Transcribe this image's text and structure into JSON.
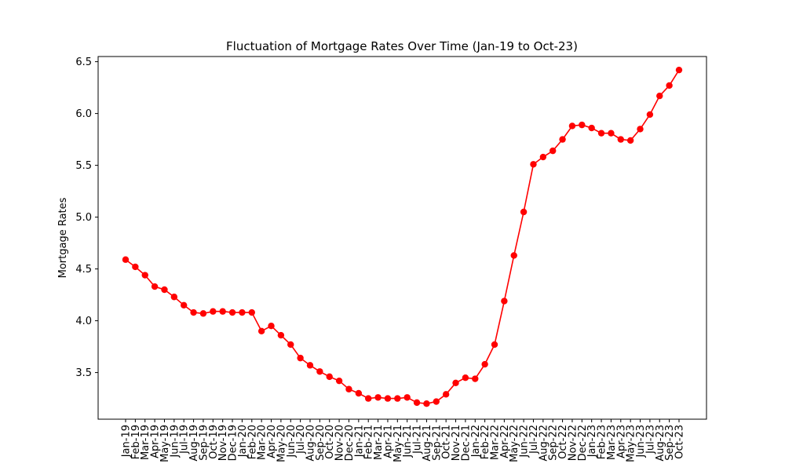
{
  "chart_data": {
    "type": "line",
    "title": "Fluctuation of Mortgage Rates Over Time (Jan-19 to Oct-23)",
    "xlabel": "",
    "ylabel": "Mortgage Rates",
    "ylim": [
      3.05,
      6.55
    ],
    "yticks": [
      "3.5",
      "4.0",
      "4.5",
      "5.0",
      "5.5",
      "6.0",
      "6.5"
    ],
    "grid": false,
    "categories": [
      "Jan-19",
      "Feb-19",
      "Mar-19",
      "Apr-19",
      "May-19",
      "Jun-19",
      "Jul-19",
      "Aug-19",
      "Sep-19",
      "Oct-19",
      "Nov-19",
      "Dec-19",
      "Jan-20",
      "Feb-20",
      "Mar-20",
      "Apr-20",
      "May-20",
      "Jun-20",
      "Jul-20",
      "Aug-20",
      "Sep-20",
      "Oct-20",
      "Nov-20",
      "Dec-20",
      "Jan-21",
      "Feb-21",
      "Mar-21",
      "Apr-21",
      "May-21",
      "Jun-21",
      "Jul-21",
      "Aug-21",
      "Sep-21",
      "Oct-21",
      "Nov-21",
      "Dec-21",
      "Jan-22",
      "Feb-22",
      "Mar-22",
      "Apr-22",
      "May-22",
      "Jun-22",
      "Jul-22",
      "Aug-22",
      "Sep-22",
      "Oct-22",
      "Nov-22",
      "Dec-22",
      "Jan-23",
      "Feb-23",
      "Mar-23",
      "Apr-23",
      "May-23",
      "Jun-23",
      "Jul-23",
      "Aug-23",
      "Sep-23",
      "Oct-23"
    ],
    "tick_labels": [
      "Jan-19",
      "Feb-19",
      "Mar-19",
      "Apr-19",
      "May-19",
      "Jun-19",
      "Jul-19",
      "Aug-19",
      "Sep-19",
      "Oct-19",
      "Nov-19",
      "Dec-19",
      "Jan-20",
      "Feb-20",
      "Mar-20",
      "Apr-20",
      "May-20",
      "Jun-20",
      "Jul-20",
      "Aug-20",
      "Sep-20",
      "Oct-20",
      "Nov-20",
      "Dec-20",
      "Jan-21",
      "Feb-21",
      "Mar-21",
      "Apr-21",
      "May-21",
      "Jun-21",
      "Jul-21",
      "Aug-21",
      "Sep-21",
      "Oct-21",
      "Nov-21",
      "Dec-21",
      "Jan-22",
      "Feb-22",
      "Mar-22",
      "Apr-22",
      "May-22",
      "Jun-22",
      "Jul-22",
      "Aug-22",
      "Sep-22",
      "Oct-22",
      "Nov-22",
      "Dec-22",
      "Jan-23",
      "Feb-23",
      "Mar-23",
      "Apr-23",
      "May-23",
      "Jun-23",
      "Jul-23",
      "Aug-23",
      "Sep-23",
      "Oct-23"
    ],
    "series": [
      {
        "color": "#ff0000",
        "marker": "circle",
        "values": [
          4.59,
          4.52,
          4.44,
          4.33,
          4.3,
          4.23,
          4.15,
          4.08,
          4.07,
          4.09,
          4.09,
          4.08,
          4.08,
          4.08,
          3.9,
          3.95,
          3.86,
          3.77,
          3.64,
          3.57,
          3.51,
          3.46,
          3.42,
          3.34,
          3.3,
          3.25,
          3.26,
          3.25,
          3.25,
          3.26,
          3.21,
          3.2,
          3.22,
          3.29,
          3.4,
          3.45,
          3.44,
          3.58,
          3.77,
          4.19,
          4.63,
          5.05,
          5.51,
          5.58,
          5.64,
          5.75,
          5.88,
          5.89,
          5.86,
          5.81,
          5.81,
          5.75,
          5.74,
          5.85,
          5.99,
          6.17,
          6.27,
          6.42
        ]
      }
    ]
  }
}
